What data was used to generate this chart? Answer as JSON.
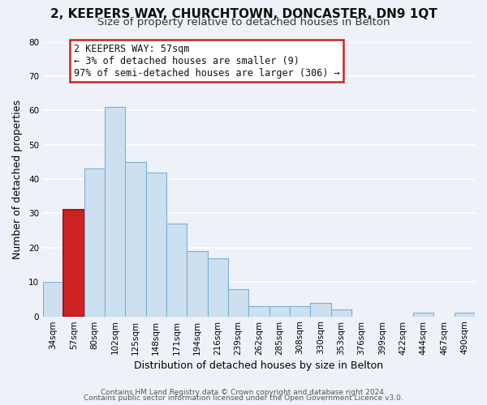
{
  "title_line1": "2, KEEPERS WAY, CHURCHTOWN, DONCASTER, DN9 1QT",
  "title_line2": "Size of property relative to detached houses in Belton",
  "xlabel": "Distribution of detached houses by size in Belton",
  "ylabel": "Number of detached properties",
  "bin_labels": [
    "34sqm",
    "57sqm",
    "80sqm",
    "102sqm",
    "125sqm",
    "148sqm",
    "171sqm",
    "194sqm",
    "216sqm",
    "239sqm",
    "262sqm",
    "285sqm",
    "308sqm",
    "330sqm",
    "353sqm",
    "376sqm",
    "399sqm",
    "422sqm",
    "444sqm",
    "467sqm",
    "490sqm"
  ],
  "bar_values": [
    10,
    31,
    43,
    61,
    45,
    42,
    27,
    19,
    17,
    8,
    3,
    3,
    3,
    4,
    2,
    0,
    0,
    0,
    1,
    0,
    1
  ],
  "highlight_bar_index": 1,
  "bar_color": "#cce0f0",
  "highlight_color": "#cc2222",
  "bar_edge_color": "#7ab0d4",
  "highlight_edge_color": "#aa1111",
  "ylim": [
    0,
    80
  ],
  "yticks": [
    0,
    10,
    20,
    30,
    40,
    50,
    60,
    70,
    80
  ],
  "annotation_text": "2 KEEPERS WAY: 57sqm\n← 3% of detached houses are smaller (9)\n97% of semi-detached houses are larger (306) →",
  "annotation_box_edgecolor": "#cc2222",
  "footer_line1": "Contains HM Land Registry data © Crown copyright and database right 2024.",
  "footer_line2": "Contains public sector information licensed under the Open Government Licence v3.0.",
  "background_color": "#eef2f8",
  "grid_color": "#ffffff",
  "title_fontsize": 11,
  "subtitle_fontsize": 9.5,
  "axis_label_fontsize": 9,
  "tick_fontsize": 7.5,
  "annotation_fontsize": 8.5,
  "footer_fontsize": 6.5
}
